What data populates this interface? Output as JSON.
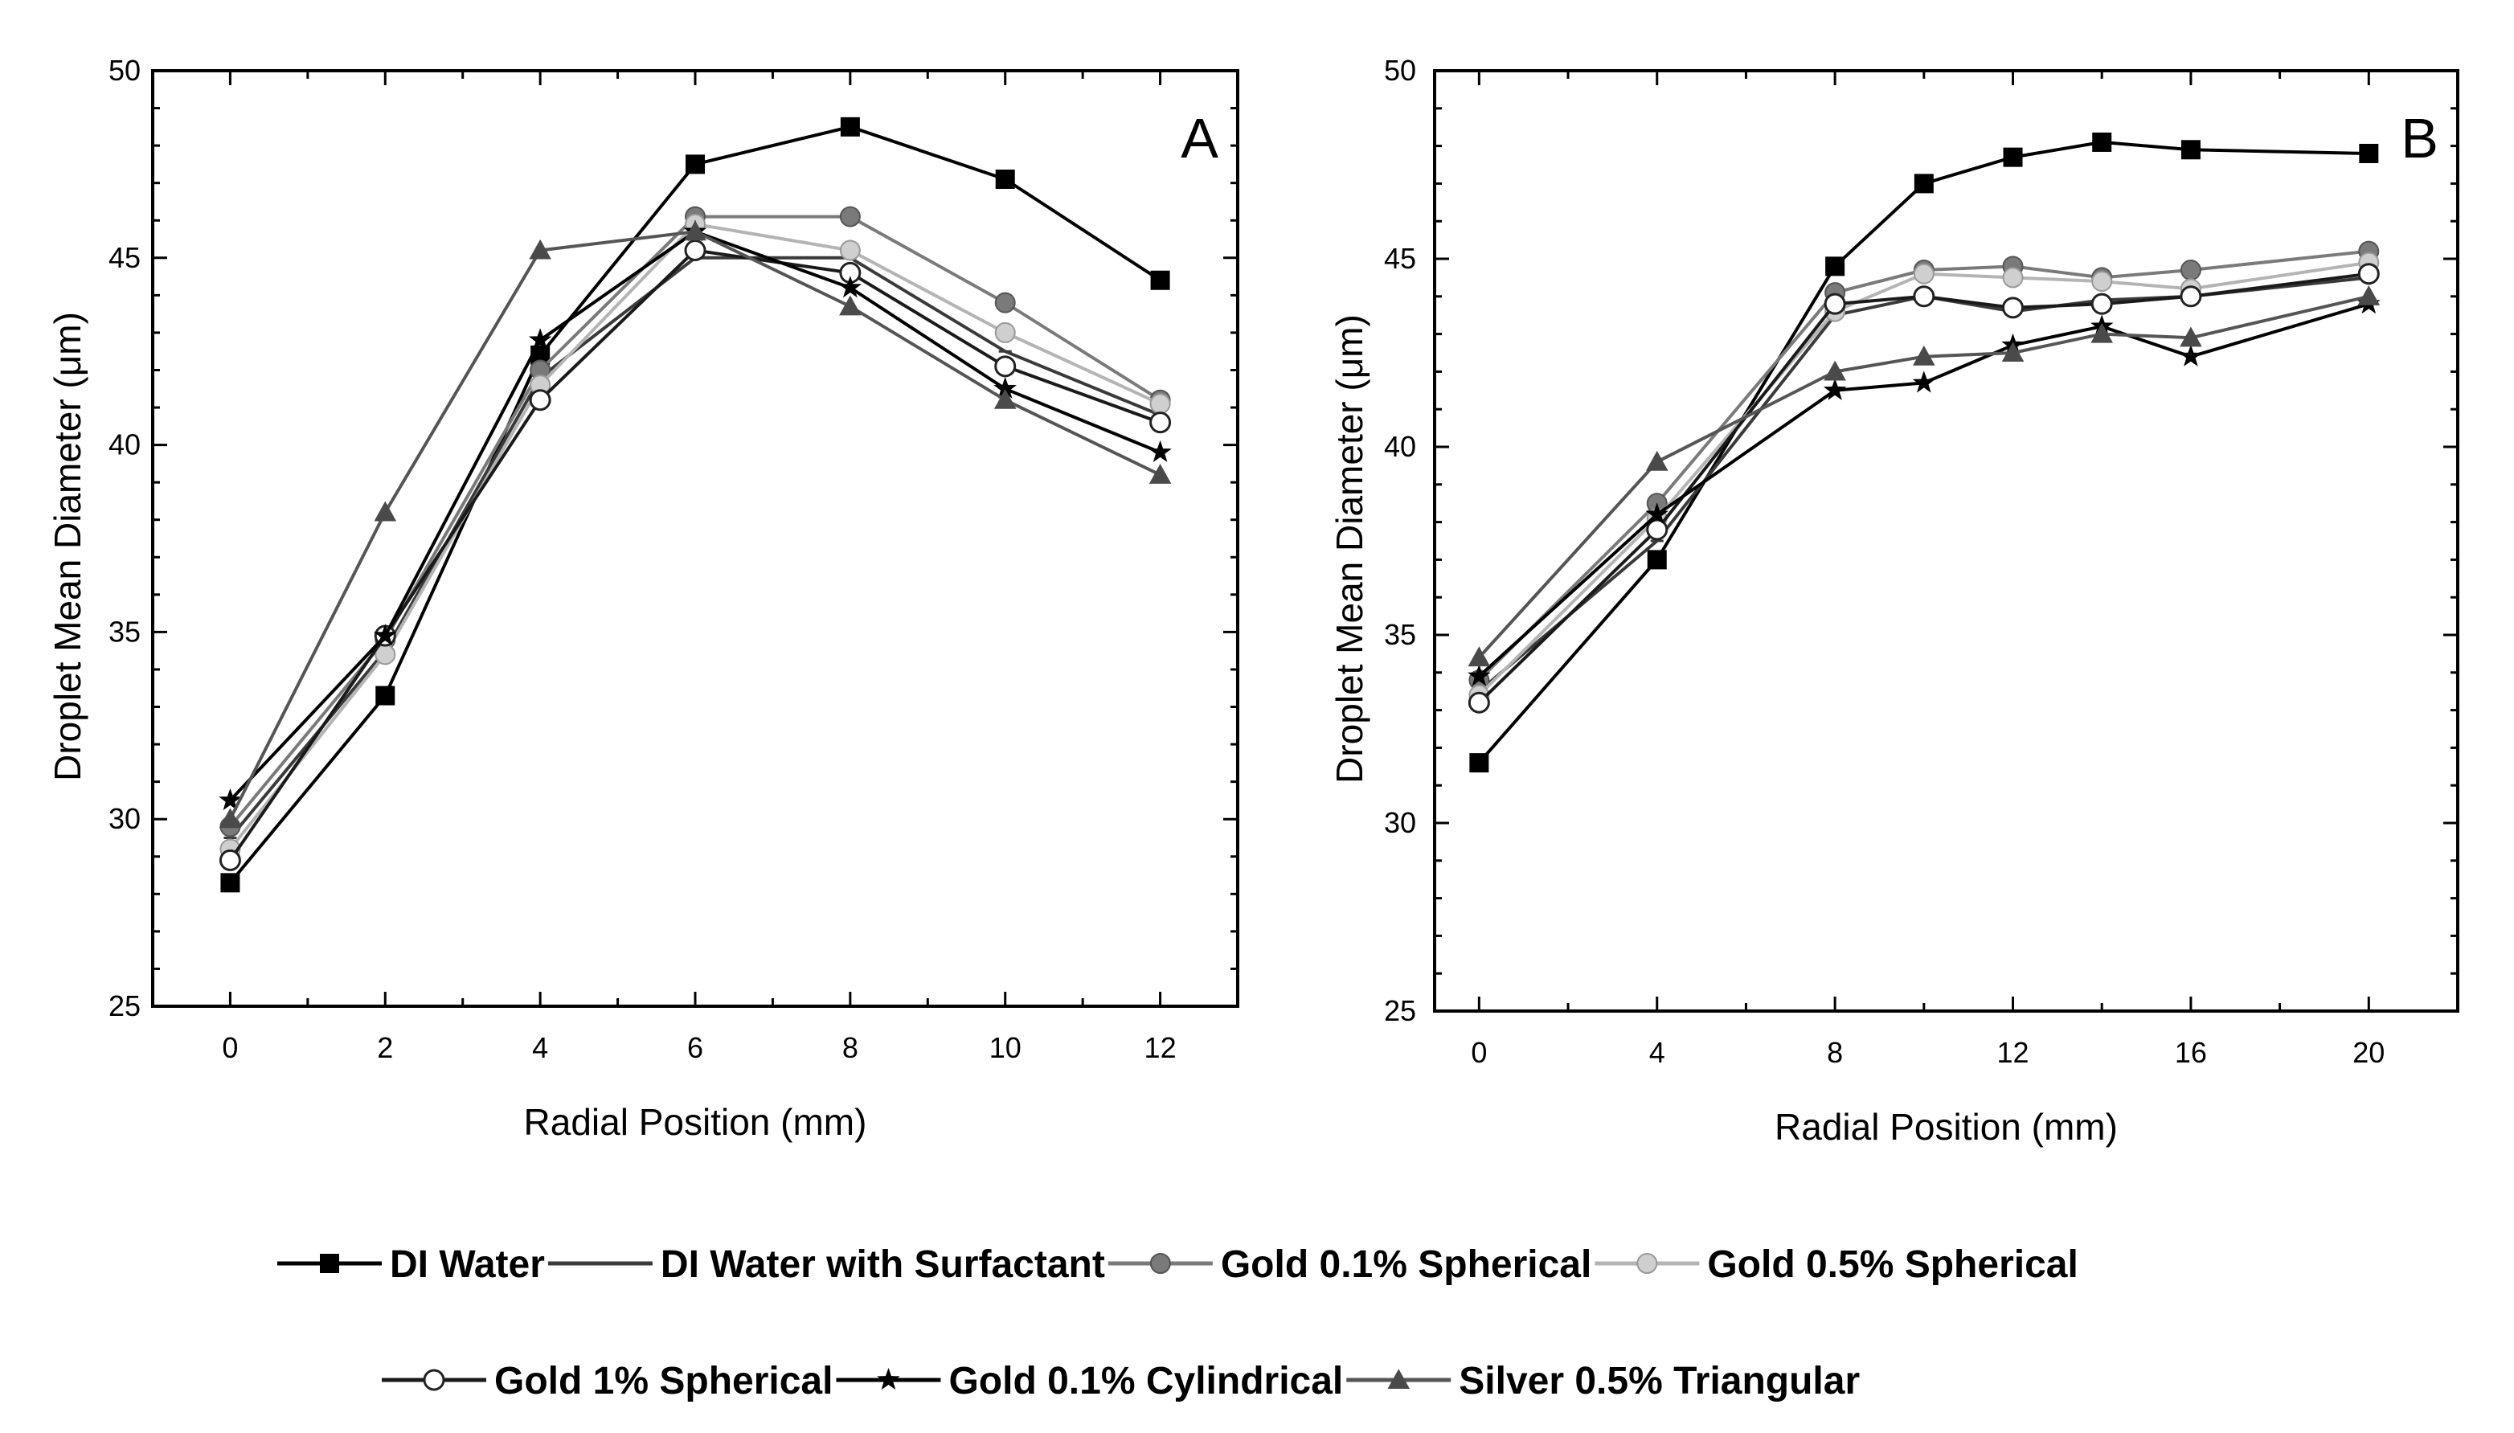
{
  "chart_data": [
    {
      "type": "line",
      "panel_label": "A",
      "xlabel": "Radial Position (mm)",
      "ylabel": "Droplet Mean Diameter (μm)",
      "xlim": [
        -1,
        13
      ],
      "ylim": [
        25,
        50
      ],
      "xticks": [
        0,
        2,
        4,
        6,
        8,
        10,
        12
      ],
      "yticks": [
        25,
        30,
        35,
        40,
        45,
        50
      ],
      "grid": false,
      "x": [
        0,
        2,
        4,
        6,
        8,
        10,
        12
      ],
      "series": [
        {
          "name": "DI Water",
          "values": [
            28.3,
            33.3,
            42.4,
            47.5,
            48.5,
            47.1,
            44.4
          ]
        },
        {
          "name": "DI Water with Surfactant",
          "values": [
            29.5,
            34.5,
            41.8,
            45.0,
            45.0,
            42.5,
            40.8
          ]
        },
        {
          "name": "Gold 0.1% Spherical",
          "values": [
            29.8,
            34.8,
            42.0,
            46.1,
            46.1,
            43.8,
            41.2
          ]
        },
        {
          "name": "Gold 0.5% Spherical",
          "values": [
            29.2,
            34.4,
            41.6,
            45.9,
            45.2,
            43.0,
            41.1
          ]
        },
        {
          "name": "Gold 1% Spherical",
          "values": [
            28.9,
            34.9,
            41.2,
            45.2,
            44.6,
            42.1,
            40.6
          ]
        },
        {
          "name": "Gold 0.1% Cylindrical",
          "values": [
            30.5,
            34.9,
            42.8,
            45.7,
            44.2,
            41.5,
            39.8
          ]
        },
        {
          "name": "Silver 0.5% Triangular",
          "values": [
            30.0,
            38.2,
            45.2,
            45.7,
            43.7,
            41.2,
            39.2
          ]
        }
      ]
    },
    {
      "type": "line",
      "panel_label": "B",
      "xlabel": "Radial Position (mm)",
      "ylabel": "Droplet Mean Diameter (μm)",
      "xlim": [
        -1,
        22
      ],
      "ylim": [
        25,
        50
      ],
      "xticks": [
        0,
        4,
        8,
        12,
        16,
        20
      ],
      "yticks": [
        25,
        30,
        35,
        40,
        45,
        50
      ],
      "grid": false,
      "x": [
        0,
        4,
        8,
        10,
        12,
        14,
        16,
        20
      ],
      "series": [
        {
          "name": "DI Water",
          "values": [
            31.6,
            37.0,
            44.8,
            47.0,
            47.7,
            48.1,
            47.9,
            47.8
          ]
        },
        {
          "name": "DI Water with Surfactant",
          "values": [
            33.5,
            37.5,
            43.5,
            44.0,
            43.6,
            43.9,
            44.0,
            44.5
          ]
        },
        {
          "name": "Gold 0.1% Spherical",
          "values": [
            33.8,
            38.5,
            44.1,
            44.7,
            44.8,
            44.5,
            44.7,
            45.2
          ]
        },
        {
          "name": "Gold 0.5% Spherical",
          "values": [
            33.4,
            38.1,
            43.6,
            44.6,
            44.5,
            44.4,
            44.2,
            44.9
          ]
        },
        {
          "name": "Gold 1% Spherical",
          "values": [
            33.2,
            37.8,
            43.8,
            44.0,
            43.7,
            43.8,
            44.0,
            44.6
          ]
        },
        {
          "name": "Gold 0.1% Cylindrical",
          "values": [
            33.9,
            38.2,
            41.5,
            41.7,
            42.7,
            43.2,
            42.4,
            43.8
          ]
        },
        {
          "name": "Silver 0.5% Triangular",
          "values": [
            34.4,
            39.6,
            42.0,
            42.4,
            42.5,
            43.0,
            42.9,
            44.0
          ]
        }
      ]
    }
  ],
  "legend": {
    "placement": "bottom",
    "items": [
      {
        "label": "DI Water",
        "color": "#000000",
        "marker": "square-filled"
      },
      {
        "label": "DI Water with Surfactant",
        "color": "#3a3a3a",
        "marker": "none"
      },
      {
        "label": "Gold 0.1% Spherical",
        "color": "#7a7a7a",
        "marker": "circle-filled"
      },
      {
        "label": "Gold 0.5% Spherical",
        "color": "#b4b4b4",
        "marker": "circle-light"
      },
      {
        "label": "Gold 1% Spherical",
        "color": "#1a1a1a",
        "marker": "circle-open"
      },
      {
        "label": "Gold 0.1% Cylindrical",
        "color": "#000000",
        "marker": "star"
      },
      {
        "label": "Silver 0.5% Triangular",
        "color": "#555555",
        "marker": "triangle-filled"
      }
    ]
  }
}
